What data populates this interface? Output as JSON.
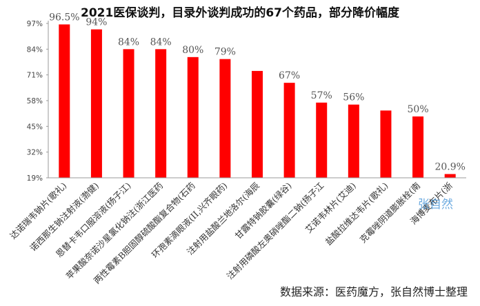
{
  "chart_data": {
    "type": "bar",
    "title": "2021医保谈判，目录外谈判成功的67个药品，部分降价幅度",
    "categories": [
      "达诺瑞韦钠片(歌礼)",
      "诺西那生钠注射液(渤健)",
      "恩替卡韦口服溶液(扬子江)",
      "苹果酸奈诺沙星氯化钠注(浙江医药",
      "两性霉素B胆固醇硫酸酯复合物(石药",
      "环孢素滴眼液(II,兴齐眼药)",
      "注射用盐酸兰地洛尔(海辰",
      "甘露特钠胶囊(绿谷)",
      "注射用磷酸左奥硝唑酯二钠(扬子江",
      "艾诺韦林片(艾迪)",
      "盐酸拉维达韦片(歌礼)",
      "克霉唑阴道膨胀栓(南",
      "海博麦布片(浙"
    ],
    "values": [
      96.5,
      94,
      84,
      84,
      80,
      79,
      73,
      67,
      57,
      56,
      53,
      50,
      20.9
    ],
    "data_labels": [
      "96.5%",
      "94%",
      "84%",
      "84%",
      "80%",
      "79%",
      "",
      "67%",
      "57%",
      "56%",
      "",
      "50%",
      "20.9%"
    ],
    "y_ticks": [
      "19%",
      "32%",
      "45%",
      "58%",
      "71%",
      "84%",
      "97%"
    ],
    "ylim": [
      19,
      97
    ],
    "bar_color": "#ff0000",
    "grid": false,
    "legend": "none"
  },
  "watermark": "张自然",
  "source_note": "数据来源：医药魔方，张自然博士整理"
}
